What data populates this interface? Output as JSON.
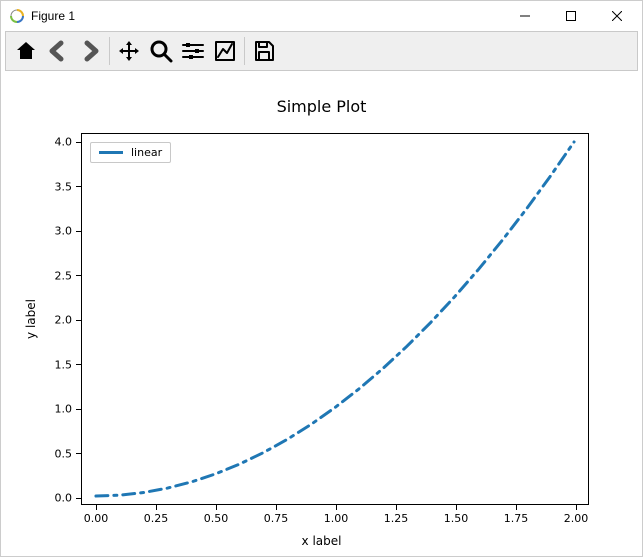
{
  "window": {
    "title": "Figure 1"
  },
  "chart": {
    "type": "line",
    "title": "Simple Plot",
    "title_fontsize": 16,
    "xlabel": "x label",
    "ylabel": "y label",
    "label_fontsize": 12,
    "tick_fontsize": 11,
    "xlim": [
      0.0,
      2.0
    ],
    "ylim": [
      0.0,
      4.0
    ],
    "xticks": [
      0.0,
      0.25,
      0.5,
      0.75,
      1.0,
      1.25,
      1.5,
      1.75,
      2.0
    ],
    "xtick_labels": [
      "0.00",
      "0.25",
      "0.50",
      "0.75",
      "1.00",
      "1.25",
      "1.50",
      "1.75",
      "2.00"
    ],
    "yticks": [
      0.0,
      0.5,
      1.0,
      1.5,
      2.0,
      2.5,
      3.0,
      3.5,
      4.0
    ],
    "ytick_labels": [
      "0.0",
      "0.5",
      "1.0",
      "1.5",
      "2.0",
      "2.5",
      "3.0",
      "3.5",
      "4.0"
    ],
    "background_color": "#ffffff",
    "axes_border_color": "#000000",
    "series": [
      {
        "label": "linear",
        "color": "#1f77b4",
        "line_width": 3,
        "dash_pattern": "12 6 3 6",
        "x": [
          0.0,
          0.1,
          0.2,
          0.3,
          0.4,
          0.5,
          0.6,
          0.7,
          0.8,
          0.9,
          1.0,
          1.1,
          1.2,
          1.3,
          1.4,
          1.5,
          1.6,
          1.7,
          1.8,
          1.9,
          2.0
        ],
        "y": [
          0.0,
          0.01,
          0.04,
          0.09,
          0.16,
          0.25,
          0.36,
          0.49,
          0.64,
          0.81,
          1.0,
          1.21,
          1.44,
          1.69,
          1.96,
          2.25,
          2.56,
          2.89,
          3.24,
          3.61,
          4.0
        ]
      }
    ],
    "legend": {
      "position": "upper left"
    }
  },
  "toolbar": {
    "items": [
      "home",
      "back",
      "forward",
      "|",
      "pan",
      "zoom",
      "subplots",
      "axes",
      "|",
      "save"
    ]
  }
}
